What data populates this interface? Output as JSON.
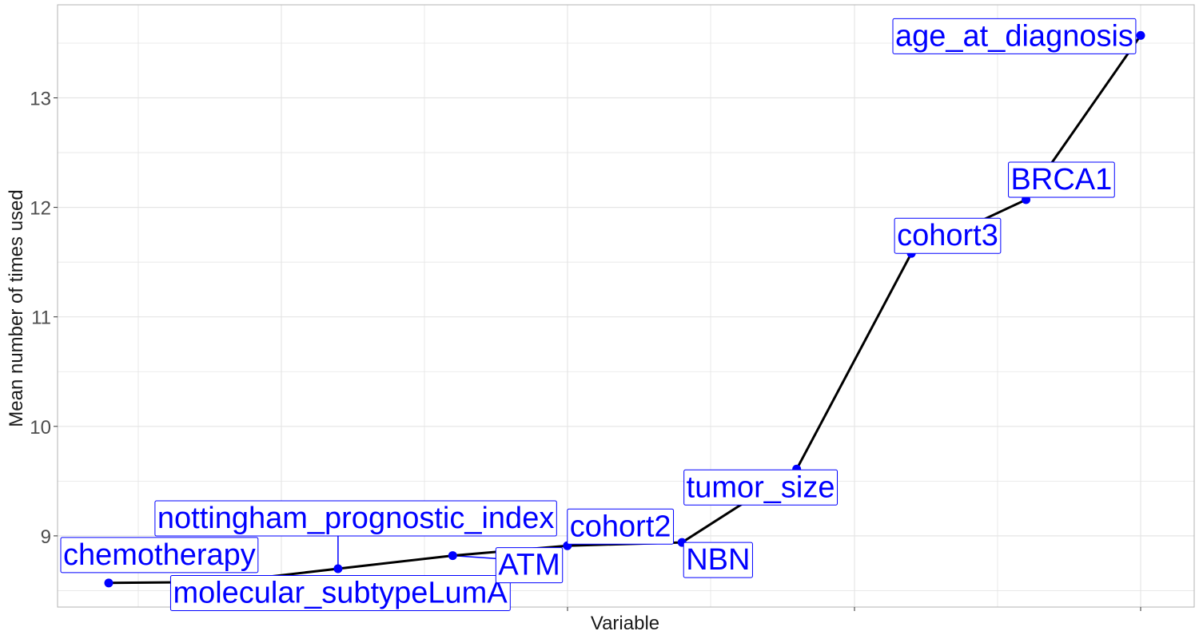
{
  "chart_data": {
    "type": "line",
    "title": "",
    "xlabel": "Variable",
    "ylabel": "Mean number of times used",
    "ylim": [
      8.35,
      13.85
    ],
    "y_ticks": [
      9,
      10,
      11,
      12,
      13
    ],
    "y_tick_labels": [
      "9",
      "10",
      "11",
      "12",
      "13"
    ],
    "grid": true,
    "colors": {
      "line": "#000000",
      "points": "#0000ff",
      "labels": "#0000ff",
      "grid": "#e5e5e5",
      "panel_border": "#b3b3b3"
    },
    "points": [
      {
        "label": "chemotherapy",
        "value": 8.57
      },
      {
        "label": "molecular_subtypeLumA",
        "value": 8.58
      },
      {
        "label": "nottingham_prognostic_index",
        "value": 8.7
      },
      {
        "label": "ATM",
        "value": 8.82
      },
      {
        "label": "cohort2",
        "value": 8.91
      },
      {
        "label": "NBN",
        "value": 8.94
      },
      {
        "label": "tumor_size",
        "value": 9.61
      },
      {
        "label": "cohort3",
        "value": 11.58
      },
      {
        "label": "BRCA1",
        "value": 12.07
      },
      {
        "label": "age_at_diagnosis",
        "value": 13.57
      }
    ]
  }
}
